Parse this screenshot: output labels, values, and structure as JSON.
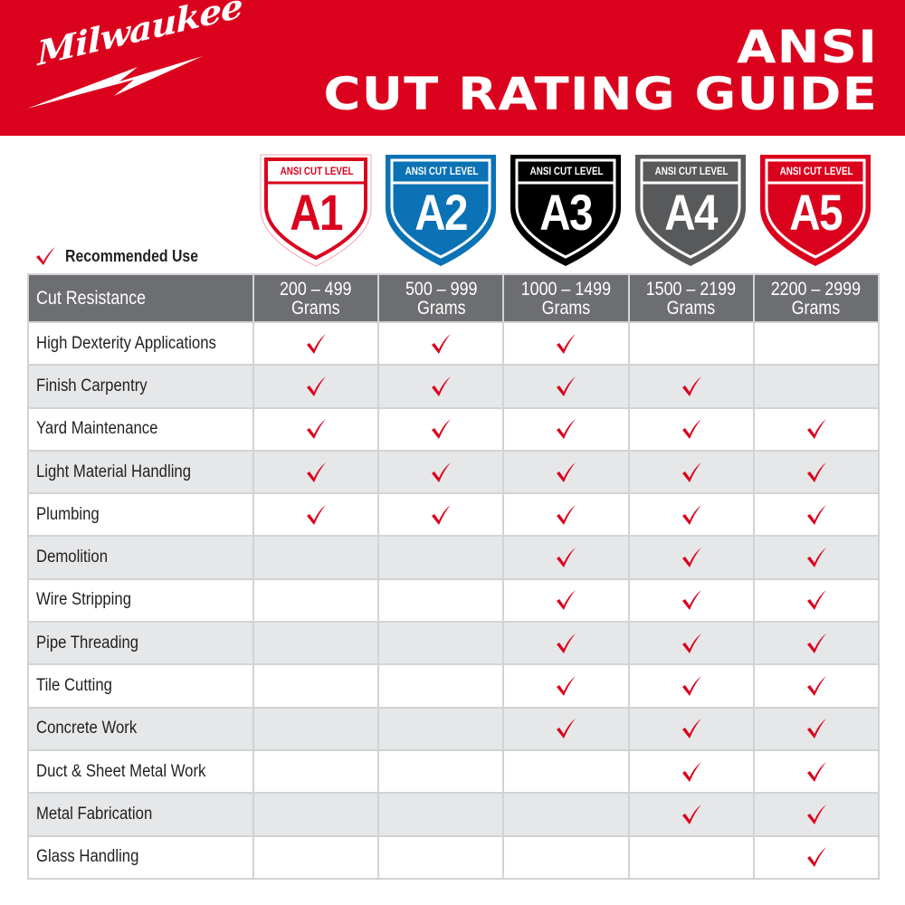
{
  "brand": {
    "name": "Milwaukee",
    "color": "#db021d"
  },
  "header": {
    "title_line1": "ANSI",
    "title_line2": "CUT RATING GUIDE"
  },
  "levels": [
    {
      "label": "ANSI CUT LEVEL",
      "code": "A1",
      "range_line1": "200 – 499",
      "range_line2": "Grams",
      "color": "#db021d",
      "style": "outline"
    },
    {
      "label": "ANSI CUT LEVEL",
      "code": "A2",
      "range_line1": "500 – 999",
      "range_line2": "Grams",
      "color": "#0a72b5",
      "style": "filled"
    },
    {
      "label": "ANSI CUT LEVEL",
      "code": "A3",
      "range_line1": "1000 – 1499",
      "range_line2": "Grams",
      "color": "#000000",
      "style": "filled"
    },
    {
      "label": "ANSI CUT LEVEL",
      "code": "A4",
      "range_line1": "1500 – 2199",
      "range_line2": "Grams",
      "color": "#58595b",
      "style": "filled"
    },
    {
      "label": "ANSI CUT LEVEL",
      "code": "A5",
      "range_line1": "2200 – 2999",
      "range_line2": "Grams",
      "color": "#db021d",
      "style": "filled"
    }
  ],
  "legend": {
    "icon": "checkmark-icon",
    "label": "Recommended Use"
  },
  "table": {
    "first_header": "Cut Resistance",
    "rows": [
      {
        "application": "High Dexterity Applications",
        "marks": [
          true,
          true,
          true,
          false,
          false
        ]
      },
      {
        "application": "Finish Carpentry",
        "marks": [
          true,
          true,
          true,
          true,
          false
        ]
      },
      {
        "application": "Yard Maintenance",
        "marks": [
          true,
          true,
          true,
          true,
          true
        ]
      },
      {
        "application": "Light Material Handling",
        "marks": [
          true,
          true,
          true,
          true,
          true
        ]
      },
      {
        "application": "Plumbing",
        "marks": [
          true,
          true,
          true,
          true,
          true
        ]
      },
      {
        "application": "Demolition",
        "marks": [
          false,
          false,
          true,
          true,
          true
        ]
      },
      {
        "application": "Wire Stripping",
        "marks": [
          false,
          false,
          true,
          true,
          true
        ]
      },
      {
        "application": "Pipe Threading",
        "marks": [
          false,
          false,
          true,
          true,
          true
        ]
      },
      {
        "application": "Tile Cutting",
        "marks": [
          false,
          false,
          true,
          true,
          true
        ]
      },
      {
        "application": "Concrete Work",
        "marks": [
          false,
          false,
          true,
          true,
          true
        ]
      },
      {
        "application": "Duct & Sheet Metal Work",
        "marks": [
          false,
          false,
          false,
          true,
          true
        ]
      },
      {
        "application": "Metal Fabrication",
        "marks": [
          false,
          false,
          false,
          true,
          true
        ]
      },
      {
        "application": "Glass Handling",
        "marks": [
          false,
          false,
          false,
          false,
          true
        ]
      }
    ]
  },
  "colors": {
    "header_bg": "#6d6e71",
    "alt_row_bg": "#e6e7e8",
    "border": "#d1d3d4",
    "check": "#db021d"
  }
}
